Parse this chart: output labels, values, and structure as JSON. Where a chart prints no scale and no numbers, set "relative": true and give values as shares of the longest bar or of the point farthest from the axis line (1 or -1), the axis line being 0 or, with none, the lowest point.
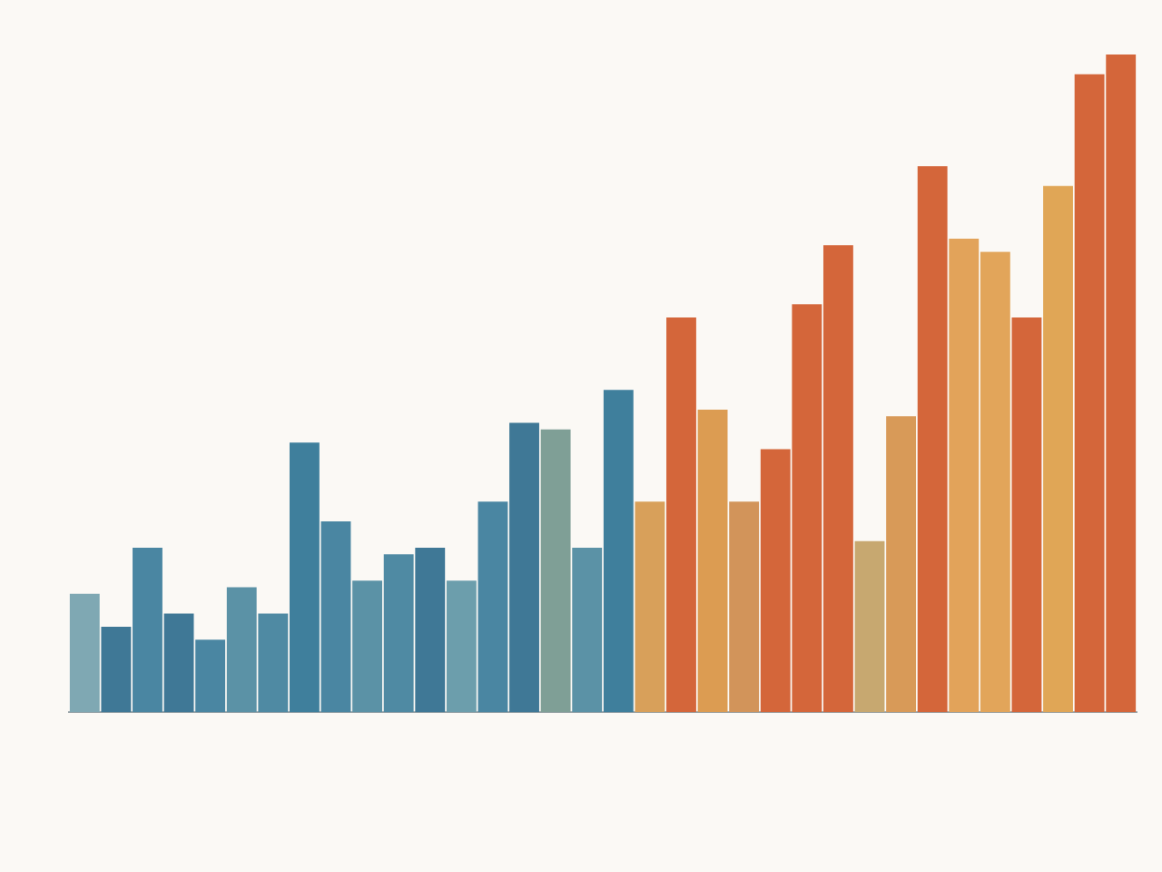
{
  "chart_data": {
    "type": "bar",
    "relative": true,
    "categories": [
      null,
      null,
      null,
      null,
      null,
      null,
      null,
      null,
      null,
      null,
      null,
      null,
      null,
      null,
      null,
      null,
      null,
      null,
      null,
      null,
      null,
      null,
      null,
      null,
      null,
      null,
      null,
      null,
      null,
      null,
      null,
      null,
      null,
      null
    ],
    "values": [
      0.18,
      0.13,
      0.25,
      0.15,
      0.11,
      0.19,
      0.15,
      0.41,
      0.29,
      0.2,
      0.24,
      0.25,
      0.2,
      0.32,
      0.44,
      0.43,
      0.25,
      0.49,
      0.32,
      0.6,
      0.46,
      0.32,
      0.4,
      0.62,
      0.71,
      0.26,
      0.45,
      0.83,
      0.72,
      0.7,
      0.6,
      0.8,
      0.97,
      1.0
    ],
    "colors": [
      "#7fa8b3",
      "#3f7896",
      "#4a86a2",
      "#3f7896",
      "#4a86a2",
      "#5b92a6",
      "#4f8aa3",
      "#3f7f9c",
      "#4a86a2",
      "#5b92a6",
      "#4f8aa3",
      "#3f7896",
      "#6c9eac",
      "#4a86a2",
      "#3f7896",
      "#7f9f96",
      "#5b92a6",
      "#3f7f9c",
      "#d8a05a",
      "#d4663a",
      "#dc9c52",
      "#d2945a",
      "#d4663a",
      "#d4663a",
      "#d4663a",
      "#c7a870",
      "#d89a58",
      "#d4663a",
      "#e2a35a",
      "#e2a55a",
      "#d4663a",
      "#e0a656",
      "#d4663a",
      "#d4663a"
    ]
  }
}
